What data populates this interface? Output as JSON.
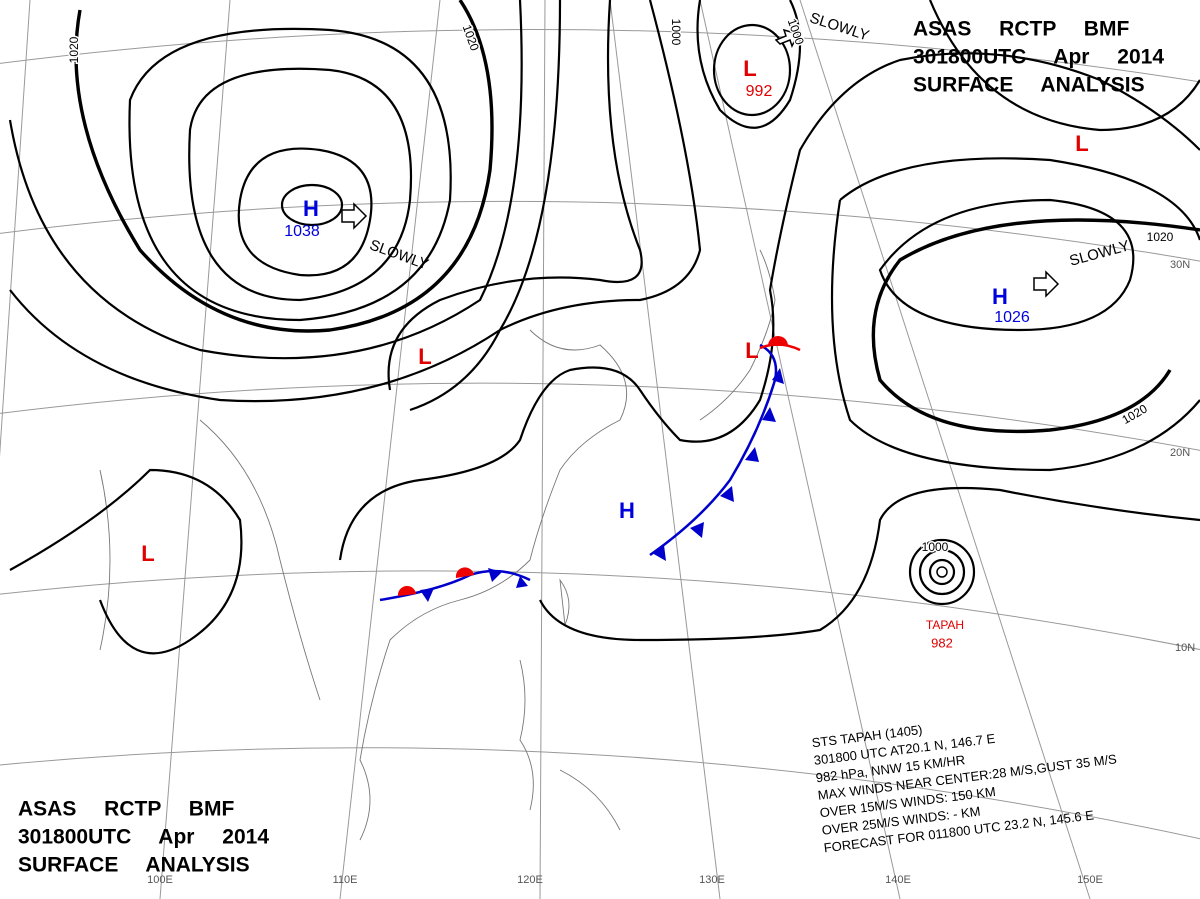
{
  "header_top": {
    "line1": "ASAS RCTP BMF",
    "line2": "301800UTC Apr 2014",
    "line3": "SURFACE ANALYSIS"
  },
  "header_bottom": {
    "line1": "ASAS RCTP BMF",
    "line2": "301800UTC Apr 2014",
    "line3": "SURFACE ANALYSIS"
  },
  "centers": [
    {
      "symbol": "H",
      "pressure": "1038"
    },
    {
      "symbol": "L",
      "pressure": "992"
    },
    {
      "symbol": "H",
      "pressure": "1026"
    },
    {
      "symbol": "L"
    },
    {
      "symbol": "L"
    },
    {
      "symbol": "L"
    },
    {
      "symbol": "L"
    },
    {
      "symbol": "H"
    }
  ],
  "typhoon": {
    "name": "TAPAH",
    "pressure": "982"
  },
  "motion_labels": [
    "SLOWLY",
    "SLOWLY",
    "SLOWLY"
  ],
  "isobar_labels": [
    "1020",
    "1020",
    "1000",
    "1000",
    "1020",
    "1020",
    "1000"
  ],
  "latitude_labels": [
    "30N",
    "20N",
    "10N"
  ],
  "longitude_labels": [
    "100E",
    "110E",
    "120E",
    "130E",
    "140E",
    "150E"
  ],
  "typhoon_info": [
    "STS TAPAH (1405)",
    "301800 UTC AT20.1 N, 146.7 E",
    "982 hPa, NNW 15 KM/HR",
    "MAX WINDS NEAR CENTER:28 M/S,GUST 35 M/S",
    "OVER 15M/S WINDS: 150 KM",
    "OVER 25M/S WINDS: - KM",
    "FORECAST FOR 011800 UTC 23.2 N, 145.6 E"
  ]
}
